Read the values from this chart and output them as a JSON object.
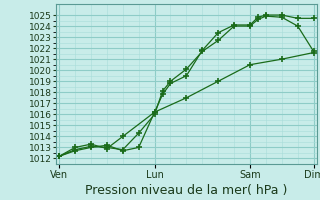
{
  "background_color": "#c8ece9",
  "plot_bg_color": "#c8ece9",
  "grid_major_color": "#8eccc7",
  "grid_minor_color": "#a8ddd9",
  "line_color": "#1a6b1a",
  "ylim": [
    1011.5,
    1026.0
  ],
  "yticks": [
    1012,
    1013,
    1014,
    1015,
    1016,
    1017,
    1018,
    1019,
    1020,
    1021,
    1022,
    1023,
    1024,
    1025
  ],
  "xlabel": "Pression niveau de la mer( hPa )",
  "xlabel_fontsize": 9,
  "tick_fontsize": 6.5,
  "xtick_labels": [
    "Ven",
    "Lun",
    "Sam",
    "Dim"
  ],
  "xtick_positions": [
    0,
    3,
    6,
    8
  ],
  "x_total": 8,
  "series1_x": [
    0,
    0.5,
    1.0,
    1.5,
    2.0,
    2.5,
    3.0,
    3.25,
    3.5,
    4.0,
    4.5,
    5.0,
    5.5,
    6.0,
    6.25,
    6.5,
    7.0,
    7.5,
    8.0
  ],
  "series1_y": [
    1012.2,
    1012.7,
    1013.0,
    1013.2,
    1012.7,
    1013.0,
    1016.2,
    1017.8,
    1018.8,
    1019.5,
    1021.8,
    1023.4,
    1024.1,
    1024.1,
    1024.8,
    1025.0,
    1025.0,
    1024.7,
    1024.7
  ],
  "series2_x": [
    0,
    0.5,
    1.0,
    1.5,
    2.0,
    2.5,
    3.0,
    3.25,
    3.5,
    4.0,
    4.5,
    5.0,
    5.5,
    6.0,
    6.25,
    6.5,
    7.0,
    7.5,
    8.0
  ],
  "series2_y": [
    1012.2,
    1012.8,
    1013.1,
    1013.0,
    1012.8,
    1014.3,
    1016.0,
    1018.1,
    1019.0,
    1020.1,
    1021.7,
    1022.7,
    1024.0,
    1024.0,
    1024.6,
    1024.9,
    1024.8,
    1024.0,
    1021.7
  ],
  "series3_x": [
    0,
    0.5,
    1.0,
    1.5,
    2.0,
    3.0,
    4.0,
    5.0,
    6.0,
    7.0,
    8.0
  ],
  "series3_y": [
    1012.2,
    1013.0,
    1013.3,
    1012.9,
    1014.0,
    1016.2,
    1017.5,
    1019.0,
    1020.5,
    1021.0,
    1021.6
  ]
}
